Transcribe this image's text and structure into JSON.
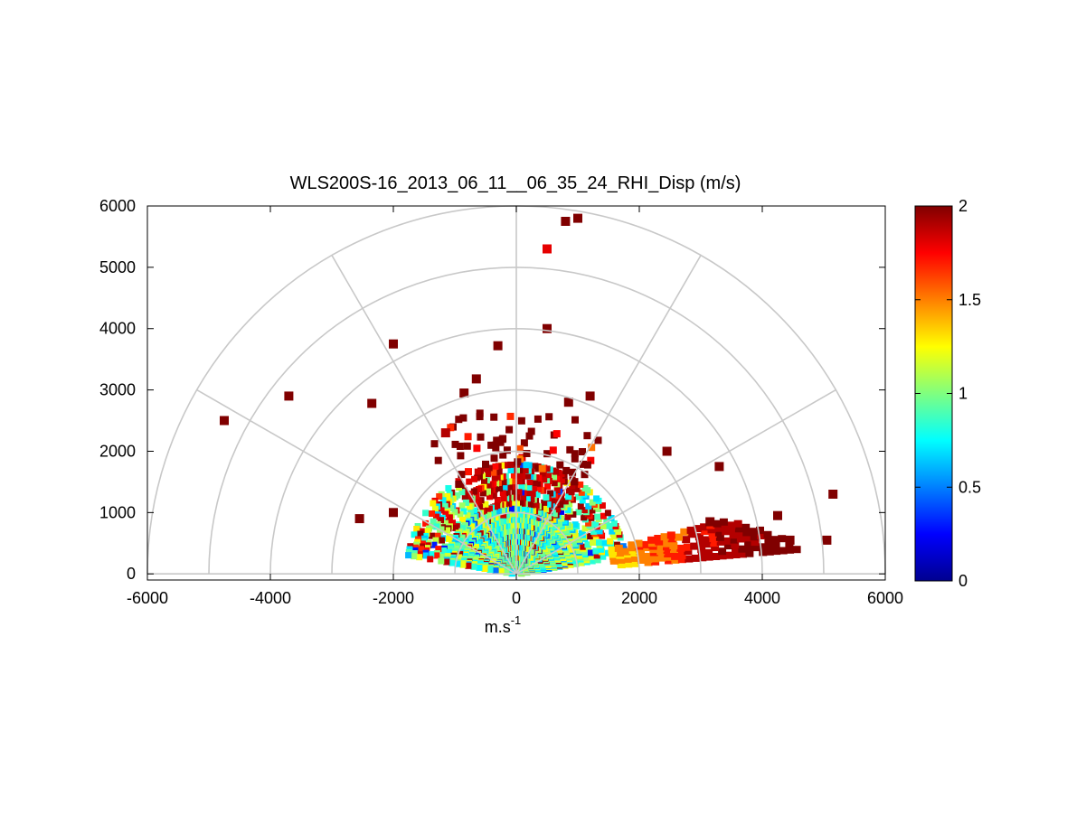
{
  "chart_data": {
    "type": "heatmap",
    "subtype": "polar-rhi-scan",
    "title": "WLS200S-16_2013_06_11__06_35_24_RHI_Disp (m/s)",
    "xlabel": "m.s",
    "xlabel_superscript": "-1",
    "ylabel": "",
    "xlim": [
      -6000,
      6000
    ],
    "ylim": [
      -100,
      6000
    ],
    "xticks": [
      -6000,
      -4000,
      -2000,
      0,
      2000,
      4000,
      6000
    ],
    "xtick_labels": [
      "-6000",
      "-4000",
      "-2000",
      "0",
      "2000",
      "4000",
      "6000"
    ],
    "yticks": [
      0,
      1000,
      2000,
      3000,
      4000,
      5000,
      6000
    ],
    "ytick_labels": [
      "0",
      "1000",
      "2000",
      "3000",
      "4000",
      "5000",
      "6000"
    ],
    "polar_grid": {
      "ring_radii": [
        1000,
        2000,
        3000,
        4000,
        5000,
        6000
      ],
      "spoke_angles_deg": [
        0,
        30,
        60,
        90,
        120,
        150,
        180
      ]
    },
    "colorbar": {
      "colormap": "jet",
      "clim": [
        0,
        2
      ],
      "ticks": [
        0,
        0.5,
        1,
        1.5,
        2
      ],
      "tick_labels": [
        "0",
        "0.5",
        "1",
        "1.5",
        "2"
      ]
    },
    "scan": {
      "center": [
        0,
        0
      ],
      "range_gate_m": 100,
      "dense_fill_radius_m": 1800,
      "dense_value_range": [
        0.6,
        1.3
      ],
      "high_value_band_radius_m": [
        1100,
        2000
      ],
      "high_value": 2.0
    },
    "isolated_cells": [
      {
        "x": -4750,
        "y": 2500,
        "v": 2.0
      },
      {
        "x": -3700,
        "y": 2900,
        "v": 2.0
      },
      {
        "x": -2350,
        "y": 2780,
        "v": 2.0
      },
      {
        "x": -2000,
        "y": 3750,
        "v": 2.0
      },
      {
        "x": -300,
        "y": 3720,
        "v": 2.0
      },
      {
        "x": 800,
        "y": 5750,
        "v": 2.0
      },
      {
        "x": 1000,
        "y": 5800,
        "v": 2.0
      },
      {
        "x": 500,
        "y": 5300,
        "v": 1.8
      },
      {
        "x": 500,
        "y": 4000,
        "v": 2.0
      },
      {
        "x": 1200,
        "y": 2900,
        "v": 2.0
      },
      {
        "x": 2450,
        "y": 2000,
        "v": 2.0
      },
      {
        "x": 3300,
        "y": 1750,
        "v": 2.0
      },
      {
        "x": 5150,
        "y": 1300,
        "v": 2.0
      },
      {
        "x": 4250,
        "y": 950,
        "v": 2.0
      },
      {
        "x": 5050,
        "y": 550,
        "v": 2.0
      },
      {
        "x": 4450,
        "y": 550,
        "v": 2.0
      },
      {
        "x": 3150,
        "y": 850,
        "v": 2.0
      },
      {
        "x": -2550,
        "y": 900,
        "v": 2.0
      },
      {
        "x": -2000,
        "y": 1000,
        "v": 2.0
      },
      {
        "x": -1150,
        "y": 2300,
        "v": 1.9
      },
      {
        "x": -850,
        "y": 2950,
        "v": 2.0
      },
      {
        "x": -650,
        "y": 3180,
        "v": 2.0
      },
      {
        "x": 850,
        "y": 2800,
        "v": 2.0
      }
    ],
    "low_elevation_beam": {
      "angle_start_deg": 5,
      "angle_end_deg": 15,
      "range_start_m": 1600,
      "range_end_m": 4700,
      "values": [
        1.3,
        1.5,
        1.7,
        1.9,
        2.0
      ]
    }
  },
  "colors": {
    "grid": "#c8c8c8",
    "axis": "#000000",
    "background": "#ffffff"
  }
}
